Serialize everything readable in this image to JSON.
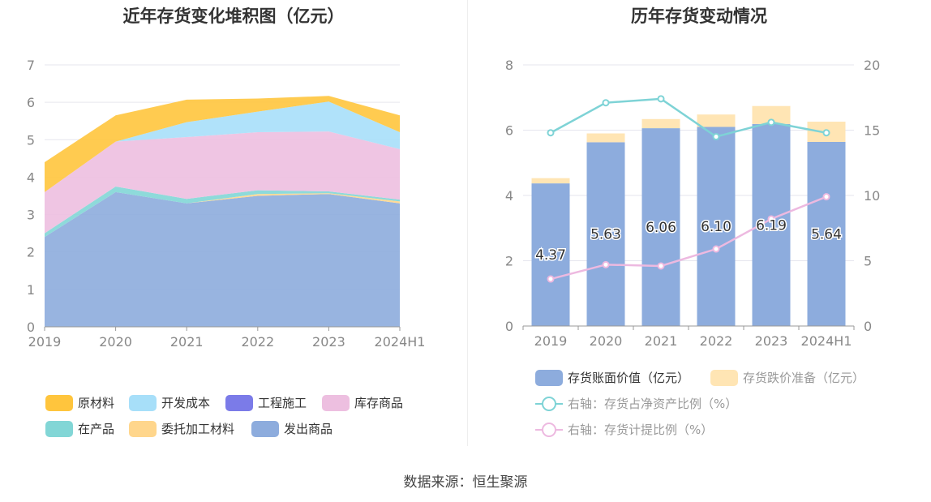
{
  "source": "数据来源：恒生聚源",
  "left_chart": {
    "title": "近年存货变化堆积图（亿元）",
    "legend": [
      "原材料",
      "开发成本",
      "工程施工",
      "库存商品",
      "在产品",
      "委托加工材料",
      "发出商品"
    ]
  },
  "right_chart": {
    "title": "历年存货变动情况",
    "legend": {
      "bar1": "存货账面价值（亿元）",
      "bar2": "存货跌价准备（亿元）",
      "line1": "右轴：存货占净资产比例（%）",
      "line2": "右轴：存货计提比例（%）"
    }
  },
  "colors": {
    "raw": "#FFC53D",
    "dev": "#A7DFF9",
    "eng": "#7B7BE8",
    "stock": "#EDBFE0",
    "wip": "#82D6D6",
    "entrusted": "#FFD68C",
    "shipped": "#8DACDD",
    "bar_book": "#8DACDD",
    "bar_provision": "#FFE5B4",
    "line_ratio": "#7ED3D6",
    "line_provision": "#EDB9E0"
  },
  "chart_data": [
    {
      "type": "area",
      "title": "近年存货变化堆积图（亿元）",
      "categories": [
        "2019",
        "2020",
        "2021",
        "2022",
        "2023",
        "2024H1"
      ],
      "ylim": [
        0,
        7
      ],
      "yticks": [
        0,
        1,
        2,
        3,
        4,
        5,
        6,
        7
      ],
      "stacked": true,
      "grid": true,
      "legend_position": "bottom",
      "series": [
        {
          "name": "发出商品",
          "values": [
            2.4,
            3.6,
            3.3,
            3.5,
            3.55,
            3.3
          ]
        },
        {
          "name": "委托加工材料",
          "values": [
            0.0,
            0.0,
            0.0,
            0.05,
            0.02,
            0.05
          ]
        },
        {
          "name": "在产品",
          "values": [
            0.1,
            0.15,
            0.12,
            0.1,
            0.05,
            0.05
          ]
        },
        {
          "name": "库存商品",
          "values": [
            1.1,
            1.2,
            1.65,
            1.55,
            1.6,
            1.35
          ]
        },
        {
          "name": "工程施工",
          "values": [
            0.0,
            0.0,
            0.0,
            0.0,
            0.0,
            0.0
          ]
        },
        {
          "name": "开发成本",
          "values": [
            0.0,
            0.0,
            0.4,
            0.55,
            0.8,
            0.45
          ]
        },
        {
          "name": "原材料",
          "values": [
            0.8,
            0.7,
            0.6,
            0.35,
            0.15,
            0.45
          ]
        }
      ]
    },
    {
      "type": "bar",
      "title": "历年存货变动情况",
      "categories": [
        "2019",
        "2020",
        "2021",
        "2022",
        "2023",
        "2024H1"
      ],
      "ylim": [
        0,
        8
      ],
      "yticks": [
        0,
        2,
        4,
        6,
        8
      ],
      "y2lim": [
        0,
        20
      ],
      "y2ticks": [
        0,
        5,
        10,
        15,
        20
      ],
      "stacked": true,
      "grid": true,
      "legend_position": "bottom",
      "series": [
        {
          "name": "存货账面价值（亿元）",
          "type": "bar",
          "values": [
            4.37,
            5.63,
            6.06,
            6.1,
            6.19,
            5.64
          ],
          "labels": [
            "4.37",
            "5.63",
            "6.06",
            "6.10",
            "6.19",
            "5.64"
          ]
        },
        {
          "name": "存货跌价准备（亿元）",
          "type": "bar",
          "values": [
            0.16,
            0.27,
            0.28,
            0.38,
            0.55,
            0.62
          ]
        },
        {
          "name": "右轴：存货占净资产比例（%）",
          "type": "line",
          "axis": "right",
          "values": [
            14.8,
            17.1,
            17.4,
            14.5,
            15.6,
            14.8
          ]
        },
        {
          "name": "右轴：存货计提比例（%）",
          "type": "line",
          "axis": "right",
          "values": [
            3.6,
            4.7,
            4.6,
            5.9,
            8.2,
            9.9
          ]
        }
      ]
    }
  ]
}
